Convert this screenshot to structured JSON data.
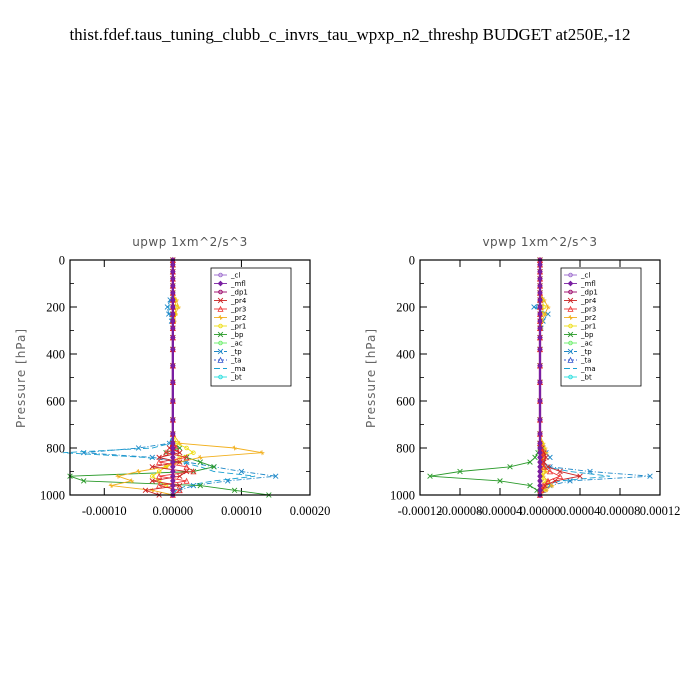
{
  "figure": {
    "title": "thist.fdef.taus_tuning_clubb_c_invrs_tau_wpxp_n2_threshp  BUDGET at250E,-12"
  },
  "legend_entries": [
    {
      "label": "_cl",
      "color": "#9966cc",
      "marker": "circle"
    },
    {
      "label": "_mfl",
      "color": "#7a1fa2",
      "marker": "diamond"
    },
    {
      "label": "_dp1",
      "color": "#990066",
      "marker": "circle"
    },
    {
      "label": "_pr4",
      "color": "#cc2222",
      "marker": "x"
    },
    {
      "label": "_pr3",
      "color": "#ee3333",
      "marker": "tri"
    },
    {
      "label": "_pr2",
      "color": "#f2b01e",
      "marker": "star"
    },
    {
      "label": "_pr1",
      "color": "#eedd11",
      "marker": "circle"
    },
    {
      "label": "_bp",
      "color": "#2a9a2a",
      "marker": "x"
    },
    {
      "label": "_ac",
      "color": "#66ee66",
      "marker": "circle"
    },
    {
      "label": "_tp",
      "color": "#1e88c8",
      "marker": "x"
    },
    {
      "label": "_ta",
      "color": "#3355cc",
      "marker": "tri"
    },
    {
      "label": "_ma",
      "color": "#1aa0d0",
      "marker": "none"
    },
    {
      "label": "_bt",
      "color": "#22dddd",
      "marker": "circle"
    }
  ],
  "chart_data": [
    {
      "type": "line",
      "title": "upwp   1xm^2/s^3",
      "ylabel": "Pressure [hPa]",
      "xlabel": "",
      "xlim": [
        -0.00015,
        0.0002
      ],
      "ylim": [
        1000,
        0
      ],
      "xticks": [
        -0.0001,
        0.0,
        0.0001,
        0.0002
      ],
      "xtick_labels": [
        "-0.00010",
        "0.00000",
        "0.00010",
        "0.00020"
      ],
      "yticks": [
        0,
        200,
        400,
        600,
        800,
        1000
      ],
      "ytick_labels": [
        "0",
        "200",
        "400",
        "600",
        "800",
        "1000"
      ],
      "legend_position": "top-right",
      "pressure_levels": [
        0,
        20,
        50,
        80,
        110,
        140,
        170,
        200,
        230,
        260,
        290,
        330,
        380,
        450,
        520,
        600,
        680,
        740,
        780,
        800,
        820,
        840,
        860,
        880,
        900,
        920,
        940,
        960,
        980,
        1000
      ],
      "series": [
        {
          "name": "_tp",
          "values": [
            0,
            0,
            0,
            0,
            0,
            0,
            -4e-06,
            -8e-06,
            -6e-06,
            -2e-06,
            0,
            0,
            0,
            0,
            0,
            0,
            0,
            0,
            -5e-06,
            -5e-05,
            -0.00013,
            -3e-05,
            2e-05,
            6e-05,
            0.0001,
            0.00015,
            8e-05,
            3e-05,
            1e-05,
            0
          ]
        },
        {
          "name": "_ma",
          "values": [
            0,
            0,
            0,
            0,
            0,
            0,
            -3e-06,
            -6e-06,
            -4e-06,
            -1e-06,
            0,
            0,
            0,
            0,
            0,
            0,
            0,
            0,
            -3e-06,
            -3e-05,
            -0.00016,
            -4e-05,
            1e-05,
            4e-05,
            6e-05,
            0.00012,
            6e-05,
            2e-05,
            5e-06,
            0
          ]
        },
        {
          "name": "_bp",
          "values": [
            0,
            0,
            0,
            0,
            0,
            0,
            0,
            0,
            0,
            0,
            0,
            0,
            0,
            0,
            0,
            0,
            0,
            0,
            0,
            1e-05,
            -1e-05,
            2e-05,
            4e-05,
            6e-05,
            3e-05,
            -0.00015,
            -0.00013,
            4e-05,
            9e-05,
            0.00014
          ]
        },
        {
          "name": "_pr2",
          "values": [
            0,
            0,
            0,
            0,
            0,
            0,
            5e-06,
            8e-06,
            4e-06,
            2e-06,
            0,
            0,
            0,
            0,
            0,
            0,
            0,
            0,
            1e-05,
            9e-05,
            0.00013,
            4e-05,
            1e-05,
            -1e-05,
            -5e-05,
            -8e-05,
            -6e-05,
            -9e-05,
            -3e-05,
            0
          ]
        },
        {
          "name": "_pr1",
          "values": [
            0,
            0,
            0,
            0,
            0,
            0,
            3e-06,
            5e-06,
            3e-06,
            1e-06,
            0,
            0,
            0,
            0,
            0,
            0,
            0,
            0,
            5e-06,
            2e-05,
            3e-05,
            1e-05,
            0,
            -1e-05,
            -2e-05,
            -3e-05,
            -2e-05,
            -1e-05,
            0,
            0
          ]
        },
        {
          "name": "_pr3",
          "values": [
            0,
            0,
            0,
            0,
            0,
            0,
            0,
            0,
            0,
            0,
            0,
            0,
            0,
            0,
            0,
            0,
            0,
            0,
            0,
            5e-06,
            -1e-05,
            2e-05,
            -2e-05,
            2e-05,
            3e-05,
            -2e-05,
            2e-05,
            -2e-05,
            1e-05,
            0
          ]
        },
        {
          "name": "_pr4",
          "values": [
            0,
            0,
            0,
            0,
            0,
            0,
            0,
            0,
            0,
            0,
            0,
            0,
            0,
            0,
            0,
            0,
            0,
            0,
            0,
            -5e-06,
            1e-05,
            -2e-05,
            1e-05,
            -3e-05,
            2e-05,
            1e-05,
            -3e-05,
            1e-05,
            -4e-05,
            -2e-05
          ]
        },
        {
          "name": "_dp1",
          "values": [
            0,
            0,
            0,
            0,
            0,
            0,
            0,
            0,
            0,
            0,
            0,
            0,
            0,
            0,
            0,
            0,
            0,
            0,
            0,
            0,
            0,
            0,
            0,
            0,
            0,
            0,
            0,
            0,
            0,
            0
          ]
        },
        {
          "name": "_mfl",
          "values": [
            0,
            0,
            0,
            0,
            0,
            0,
            0,
            0,
            0,
            0,
            0,
            0,
            0,
            0,
            0,
            0,
            0,
            0,
            0,
            0,
            0,
            0,
            0,
            0,
            0,
            0,
            0,
            0,
            0,
            0
          ]
        }
      ]
    },
    {
      "type": "line",
      "title": "vpwp   1xm^2/s^3",
      "ylabel": "Pressure [hPa]",
      "xlabel": "",
      "xlim": [
        -0.00012,
        0.00012
      ],
      "ylim": [
        1000,
        0
      ],
      "xticks": [
        -0.00012,
        -8e-05,
        -4e-05,
        0.0,
        4e-05,
        8e-05,
        0.00012
      ],
      "xtick_labels": [
        "-0.00012",
        "-0.00008",
        "-0.00004",
        "0.00000",
        "0.00004",
        "0.00008",
        "0.00012"
      ],
      "yticks": [
        0,
        200,
        400,
        600,
        800,
        1000
      ],
      "ytick_labels": [
        "0",
        "200",
        "400",
        "600",
        "800",
        "1000"
      ],
      "legend_position": "top-right",
      "pressure_levels": [
        0,
        20,
        50,
        80,
        110,
        140,
        170,
        200,
        230,
        260,
        290,
        330,
        380,
        450,
        520,
        600,
        680,
        740,
        780,
        800,
        820,
        840,
        860,
        880,
        900,
        920,
        940,
        960,
        980,
        1000
      ],
      "series": [
        {
          "name": "_tp",
          "values": [
            0,
            0,
            0,
            0,
            0,
            0,
            2e-06,
            -6e-06,
            8e-06,
            3e-06,
            1e-06,
            0,
            0,
            0,
            0,
            0,
            0,
            0,
            0,
            3e-06,
            6e-06,
            1e-05,
            3e-06,
            1e-05,
            5e-05,
            0.00011,
            3e-05,
            1e-05,
            3e-06,
            0
          ]
        },
        {
          "name": "_ma",
          "values": [
            0,
            0,
            0,
            0,
            0,
            0,
            1e-06,
            -4e-06,
            5e-06,
            2e-06,
            0,
            0,
            0,
            0,
            0,
            0,
            0,
            0,
            0,
            2e-06,
            4e-06,
            6e-06,
            2e-06,
            6e-06,
            3e-05,
            7e-05,
            2e-05,
            5e-06,
            1e-06,
            0
          ]
        },
        {
          "name": "_bp",
          "values": [
            0,
            0,
            0,
            0,
            0,
            0,
            0,
            0,
            0,
            0,
            0,
            0,
            0,
            0,
            0,
            0,
            0,
            0,
            0,
            0,
            -2e-06,
            -5e-06,
            -1e-05,
            -3e-05,
            -8e-05,
            -0.00011,
            -4e-05,
            -1e-05,
            -3e-06,
            0
          ]
        },
        {
          "name": "_pr2",
          "values": [
            0,
            0,
            0,
            0,
            0,
            0,
            4e-06,
            8e-06,
            5e-06,
            2e-06,
            1e-06,
            0,
            0,
            0,
            0,
            0,
            0,
            0,
            3e-06,
            5e-06,
            6e-06,
            3e-06,
            2e-06,
            4e-06,
            6e-06,
            3e-06,
            8e-06,
            1.2e-05,
            6e-06,
            0
          ]
        },
        {
          "name": "_pr1",
          "values": [
            0,
            0,
            0,
            0,
            0,
            0,
            2e-06,
            4e-06,
            2e-06,
            1e-06,
            0,
            0,
            0,
            0,
            0,
            0,
            0,
            0,
            2e-06,
            3e-06,
            3e-06,
            2e-06,
            1e-06,
            2e-06,
            3e-06,
            2e-06,
            4e-06,
            6e-06,
            3e-06,
            0
          ]
        },
        {
          "name": "_pr4",
          "values": [
            0,
            0,
            0,
            0,
            0,
            0,
            0,
            0,
            0,
            0,
            0,
            0,
            0,
            0,
            0,
            0,
            0,
            0,
            0,
            2e-06,
            4e-06,
            6e-06,
            4e-06,
            8e-06,
            2e-05,
            4e-05,
            1.5e-05,
            5e-06,
            2e-06,
            0
          ]
        },
        {
          "name": "_pr3",
          "values": [
            0,
            0,
            0,
            0,
            0,
            0,
            0,
            0,
            0,
            0,
            0,
            0,
            0,
            0,
            0,
            0,
            0,
            0,
            0,
            1e-06,
            2e-06,
            3e-06,
            2e-06,
            4e-06,
            1e-05,
            2e-05,
            8e-06,
            3e-06,
            1e-06,
            0
          ]
        },
        {
          "name": "_dp1",
          "values": [
            0,
            0,
            0,
            0,
            0,
            0,
            0,
            0,
            0,
            0,
            0,
            0,
            0,
            0,
            0,
            0,
            0,
            0,
            0,
            0,
            0,
            0,
            0,
            0,
            0,
            0,
            0,
            0,
            0,
            0
          ]
        },
        {
          "name": "_mfl",
          "values": [
            0,
            0,
            0,
            0,
            0,
            0,
            0,
            0,
            0,
            0,
            0,
            0,
            0,
            0,
            0,
            0,
            0,
            0,
            0,
            0,
            0,
            0,
            0,
            0,
            0,
            0,
            0,
            0,
            0,
            0
          ]
        }
      ]
    }
  ]
}
